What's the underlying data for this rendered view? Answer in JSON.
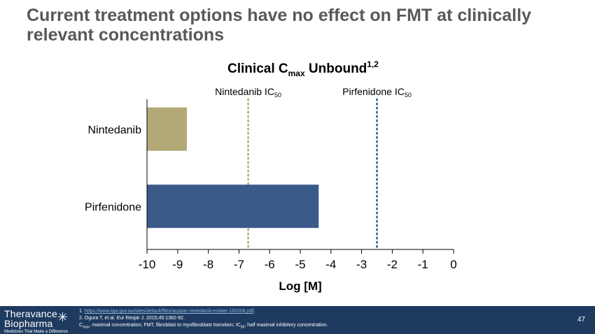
{
  "slide": {
    "title_line1": "Current treatment options have no effect on FMT at clinically",
    "title_line2": "relevant concentrations",
    "page_number": "47"
  },
  "chart_data": {
    "type": "bar",
    "orientation": "horizontal",
    "title": "Clinical Cmax Unbound",
    "title_parts": {
      "main": "Clinical C",
      "sub": "max",
      "tail": " Unbound",
      "sup": "1,2"
    },
    "categories": [
      "Nintedanib",
      "Pirfenidone"
    ],
    "values": [
      -8.7,
      -4.4
    ],
    "colors": [
      "#b3a878",
      "#3a5a8a"
    ],
    "xlabel": "Log [M]",
    "ylabel": "",
    "xlim": [
      -10,
      0
    ],
    "xticks": [
      -10,
      -9,
      -8,
      -7,
      -6,
      -5,
      -4,
      -3,
      -2,
      -1,
      0
    ],
    "reference_lines": [
      {
        "label_main": "Nintedanib IC",
        "label_sub": "50",
        "x": -6.7,
        "color": "#b3a878",
        "style": "dotted"
      },
      {
        "label_main": "Pirfenidone IC",
        "label_sub": "50",
        "x": -2.5,
        "color": "#2e5f8c",
        "style": "dotted"
      }
    ],
    "grid": false
  },
  "footer": {
    "logo_line1": "Theravance",
    "logo_line2": "Biopharma",
    "logo_tagline": "Medicines That Make a Difference",
    "ref1_num": "1.",
    "ref1_link": "https://www.tga.gov.au/sites/default/files/auspar-nintedanib-esilate-160208.pdf",
    "ref1_tail": ".",
    "ref2": "2. Ogura T, et al. Eur Respir J. 2015;45:1382-92.",
    "abbrev_c": "C",
    "abbrev_c_sub": "max",
    "abbrev_mid": ", maximal concentration; FMT, fibroblast to myofibroblast transition; IC",
    "abbrev_ic_sub": "50",
    "abbrev_tail": ", half maximal inhibitory concentration."
  }
}
